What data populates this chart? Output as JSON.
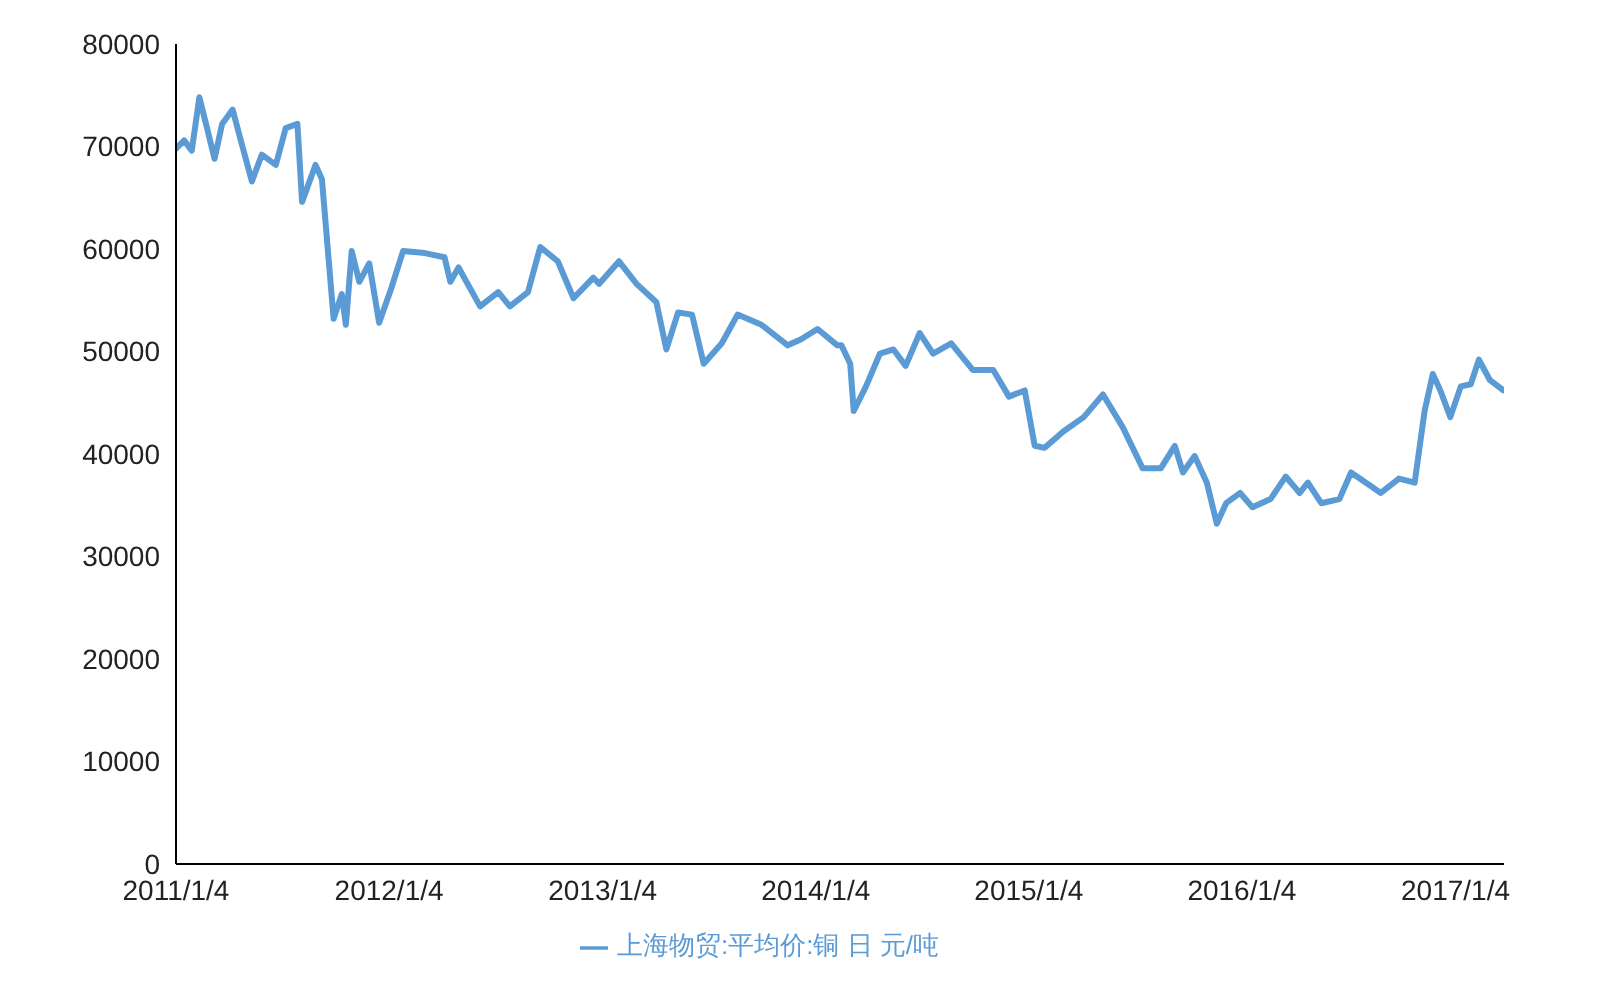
{
  "chart_data": {
    "type": "line",
    "x": [
      "2011-01-04",
      "2011-01-18",
      "2011-01-31",
      "2011-02-13",
      "2011-02-27",
      "2011-03-11",
      "2011-03-24",
      "2011-04-11",
      "2011-04-24",
      "2011-05-14",
      "2011-05-31",
      "2011-06-24",
      "2011-07-11",
      "2011-07-31",
      "2011-08-08",
      "2011-08-31",
      "2011-09-11",
      "2011-10-01",
      "2011-10-15",
      "2011-10-22",
      "2011-11-01",
      "2011-11-14",
      "2011-12-01",
      "2011-12-18",
      "2012-01-08",
      "2012-01-28",
      "2012-03-05",
      "2012-04-08",
      "2012-04-18",
      "2012-05-02",
      "2012-06-08",
      "2012-07-09",
      "2012-07-29",
      "2012-08-29",
      "2012-09-19",
      "2012-10-19",
      "2012-11-15",
      "2012-12-19",
      "2012-12-29",
      "2013-02-01",
      "2013-03-03",
      "2013-04-06",
      "2013-04-23",
      "2013-05-13",
      "2013-06-06",
      "2013-06-26",
      "2013-07-27",
      "2013-08-23",
      "2013-10-03",
      "2013-11-17",
      "2013-12-10",
      "2014-01-07",
      "2014-02-10",
      "2014-02-17",
      "2014-03-04",
      "2014-03-10",
      "2014-03-31",
      "2014-04-24",
      "2014-05-17",
      "2014-06-07",
      "2014-07-01",
      "2014-07-24",
      "2014-08-24",
      "2014-09-30",
      "2014-11-04",
      "2014-12-01",
      "2014-12-28",
      "2015-01-14",
      "2015-01-31",
      "2015-03-04",
      "2015-04-08",
      "2015-05-11",
      "2015-06-14",
      "2015-07-18",
      "2015-08-18",
      "2015-09-11",
      "2015-09-25",
      "2015-10-15",
      "2015-11-05",
      "2015-11-22",
      "2015-12-08",
      "2016-01-01",
      "2016-01-22",
      "2016-02-22",
      "2016-03-19",
      "2016-04-12",
      "2016-04-26",
      "2016-05-19",
      "2016-06-19",
      "2016-07-09",
      "2016-08-29",
      "2016-09-29",
      "2016-10-26",
      "2016-11-12",
      "2016-11-26",
      "2016-12-09",
      "2016-12-26",
      "2017-01-13",
      "2017-01-30",
      "2017-02-13",
      "2017-03-04",
      "2017-03-27"
    ],
    "series": [
      {
        "name": "上海物贸:平均价:铜 日 元/吨",
        "color": "#5b9bd5",
        "values": [
          69800,
          70600,
          69600,
          74800,
          71600,
          68800,
          72200,
          73600,
          70800,
          66600,
          69200,
          68200,
          71800,
          72200,
          64600,
          68200,
          66800,
          53200,
          55600,
          52600,
          59800,
          56800,
          58600,
          52800,
          56200,
          59800,
          59600,
          59200,
          56800,
          58200,
          54400,
          55800,
          54400,
          55800,
          60200,
          58800,
          55200,
          57200,
          56600,
          58800,
          56600,
          54800,
          50200,
          53800,
          53600,
          48800,
          50800,
          53600,
          52600,
          50600,
          51200,
          52200,
          50600,
          50600,
          48800,
          44200,
          46600,
          49800,
          50200,
          48600,
          51800,
          49800,
          50800,
          48200,
          48200,
          45600,
          46200,
          40800,
          40600,
          42200,
          43600,
          45800,
          42600,
          38600,
          38600,
          40800,
          38200,
          39800,
          37200,
          33200,
          35200,
          36200,
          34800,
          35600,
          37800,
          36200,
          37200,
          35200,
          35600,
          38200,
          36200,
          37600,
          37200,
          44200,
          47800,
          46200,
          43600,
          46600,
          46800,
          49200,
          47200,
          46200
        ]
      }
    ],
    "xlim": [
      "2011-01-04",
      "2017-03-28"
    ],
    "xticks": [
      {
        "value": "2011-01-04",
        "label": "2011/1/4"
      },
      {
        "value": "2012-01-04",
        "label": "2012/1/4"
      },
      {
        "value": "2013-01-04",
        "label": "2013/1/4"
      },
      {
        "value": "2014-01-04",
        "label": "2014/1/4"
      },
      {
        "value": "2015-01-04",
        "label": "2015/1/4"
      },
      {
        "value": "2016-01-04",
        "label": "2016/1/4"
      },
      {
        "value": "2017-01-04",
        "label": "2017/1/4"
      }
    ],
    "ylim": [
      0,
      80000
    ],
    "yticks": [
      0,
      10000,
      20000,
      30000,
      40000,
      50000,
      60000,
      70000,
      80000
    ],
    "grid": false,
    "legend": "bottom",
    "marker": "none",
    "line_style": "solid"
  }
}
